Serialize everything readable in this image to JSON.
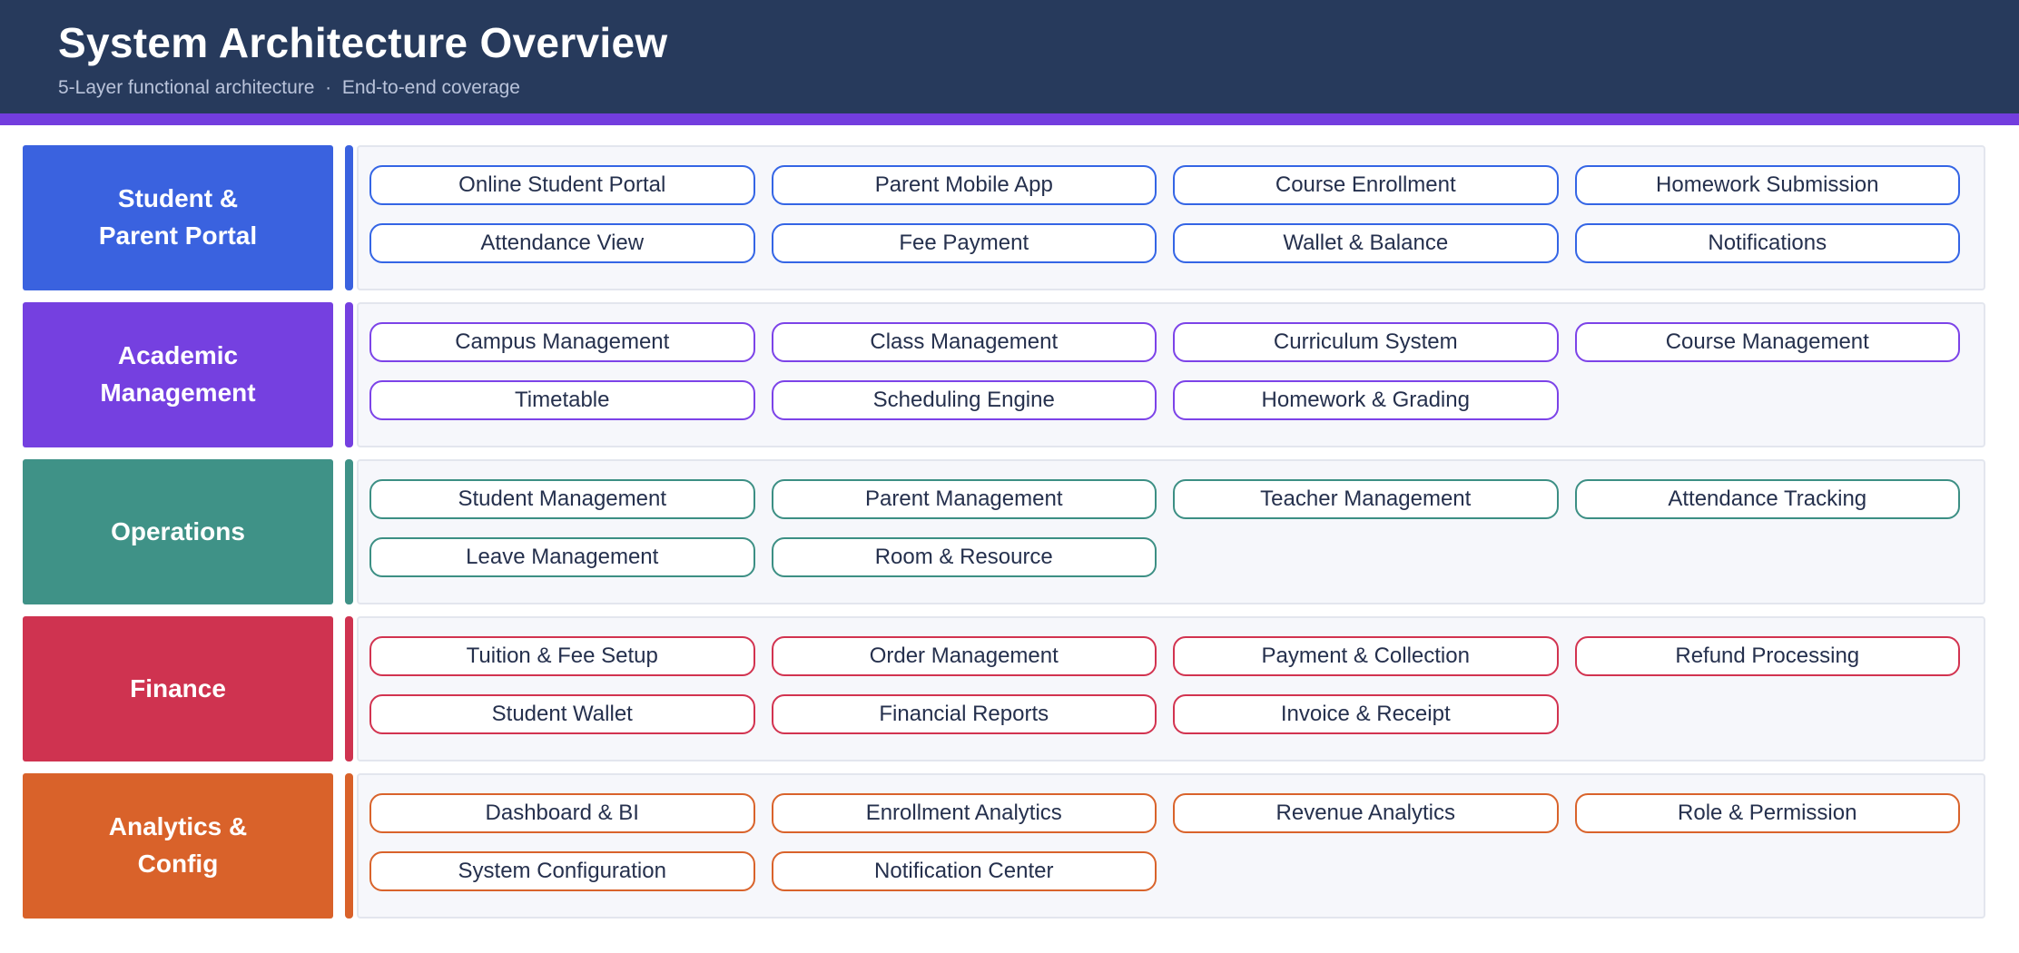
{
  "header": {
    "title": "System Architecture Overview",
    "subtitle": "5-Layer functional architecture  ·  End-to-end coverage"
  },
  "colors": {
    "header_bg": "#273a5c",
    "accent_strip": "#733dde",
    "panel_bg": "#f6f7fb",
    "panel_border": "#e3e6ee",
    "pill_text": "#25304d"
  },
  "layers": [
    {
      "name": "Student &\nParent Portal",
      "color": "#3a62df",
      "pill_border": "#3465e5",
      "modules": [
        "Online Student Portal",
        "Parent Mobile App",
        "Course Enrollment",
        "Homework Submission",
        "Attendance View",
        "Fee Payment",
        "Wallet & Balance",
        "Notifications"
      ]
    },
    {
      "name": "Academic\nManagement",
      "color": "#7540e0",
      "pill_border": "#7c43e8",
      "modules": [
        "Campus Management",
        "Class Management",
        "Curriculum System",
        "Course Management",
        "Timetable",
        "Scheduling Engine",
        "Homework & Grading"
      ]
    },
    {
      "name": "Operations",
      "color": "#3f9287",
      "pill_border": "#3c8f84",
      "modules": [
        "Student Management",
        "Parent Management",
        "Teacher Management",
        "Attendance Tracking",
        "Leave Management",
        "Room & Resource"
      ]
    },
    {
      "name": "Finance",
      "color": "#cf3350",
      "pill_border": "#d23350",
      "modules": [
        "Tuition & Fee Setup",
        "Order Management",
        "Payment & Collection",
        "Refund Processing",
        "Student Wallet",
        "Financial Reports",
        "Invoice & Receipt"
      ]
    },
    {
      "name": "Analytics &\nConfig",
      "color": "#d9622a",
      "pill_border": "#d9632b",
      "modules": [
        "Dashboard & BI",
        "Enrollment Analytics",
        "Revenue Analytics",
        "Role & Permission",
        "System Configuration",
        "Notification Center"
      ]
    }
  ]
}
